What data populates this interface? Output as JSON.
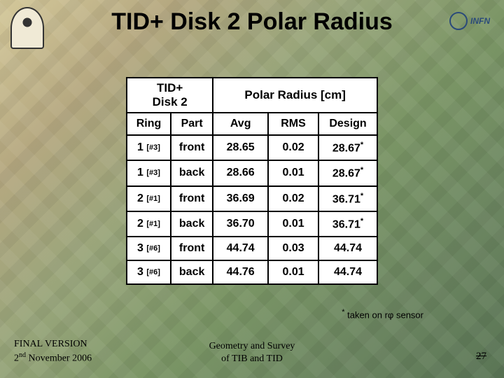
{
  "title": "TID+ Disk 2 Polar Radius",
  "table": {
    "header_top_left_line1": "TID+",
    "header_top_left_line2": "Disk 2",
    "header_top_right": "Polar Radius [cm]",
    "columns": {
      "ring": "Ring",
      "part": "Part",
      "avg": "Avg",
      "rms": "RMS",
      "design": "Design"
    },
    "rows": [
      {
        "ring_num": "1",
        "ring_sub": "[#3]",
        "part": "front",
        "avg": "28.65",
        "rms": "0.02",
        "design": "28.67",
        "design_star": true
      },
      {
        "ring_num": "1",
        "ring_sub": "[#3]",
        "part": "back",
        "avg": "28.66",
        "rms": "0.01",
        "design": "28.67",
        "design_star": true
      },
      {
        "ring_num": "2",
        "ring_sub": "[#1]",
        "part": "front",
        "avg": "36.69",
        "rms": "0.02",
        "design": "36.71",
        "design_star": true
      },
      {
        "ring_num": "2",
        "ring_sub": "[#1]",
        "part": "back",
        "avg": "36.70",
        "rms": "0.01",
        "design": "36.71",
        "design_star": true
      },
      {
        "ring_num": "3",
        "ring_sub": "[#6]",
        "part": "front",
        "avg": "44.74",
        "rms": "0.03",
        "design": "44.74",
        "design_star": false
      },
      {
        "ring_num": "3",
        "ring_sub": "[#6]",
        "part": "back",
        "avg": "44.76",
        "rms": "0.01",
        "design": "44.74",
        "design_star": false
      }
    ]
  },
  "footnote_star": "*",
  "footnote_text": " taken on rφ sensor",
  "footer": {
    "left_line1": "FINAL VERSION",
    "left_line2_pre": "2",
    "left_line2_sup": "nd",
    "left_line2_post": " November 2006",
    "center_line1": "Geometry and Survey",
    "center_line2": "of TIB and TID",
    "page": "27"
  },
  "logos": {
    "left_alt": "university-seal",
    "right_text": "INFN"
  },
  "colors": {
    "text": "#000000",
    "table_bg": "#ffffff",
    "border": "#000000",
    "infn_blue": "#2a4a7a"
  }
}
